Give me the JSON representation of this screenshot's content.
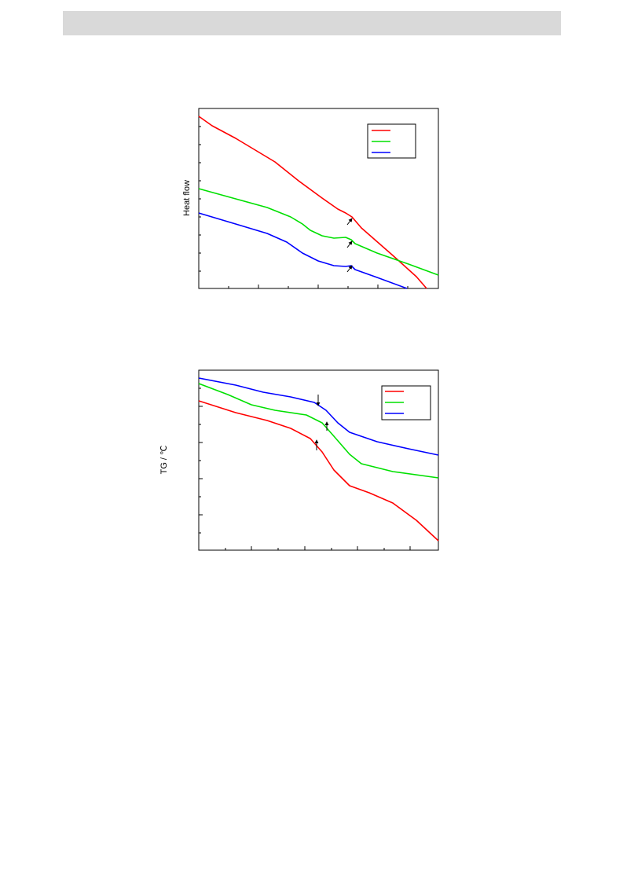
{
  "figures": [
    {
      "ylabel": "Heat flow"
    },
    {
      "ylabel": "TG / ℃"
    }
  ]
}
